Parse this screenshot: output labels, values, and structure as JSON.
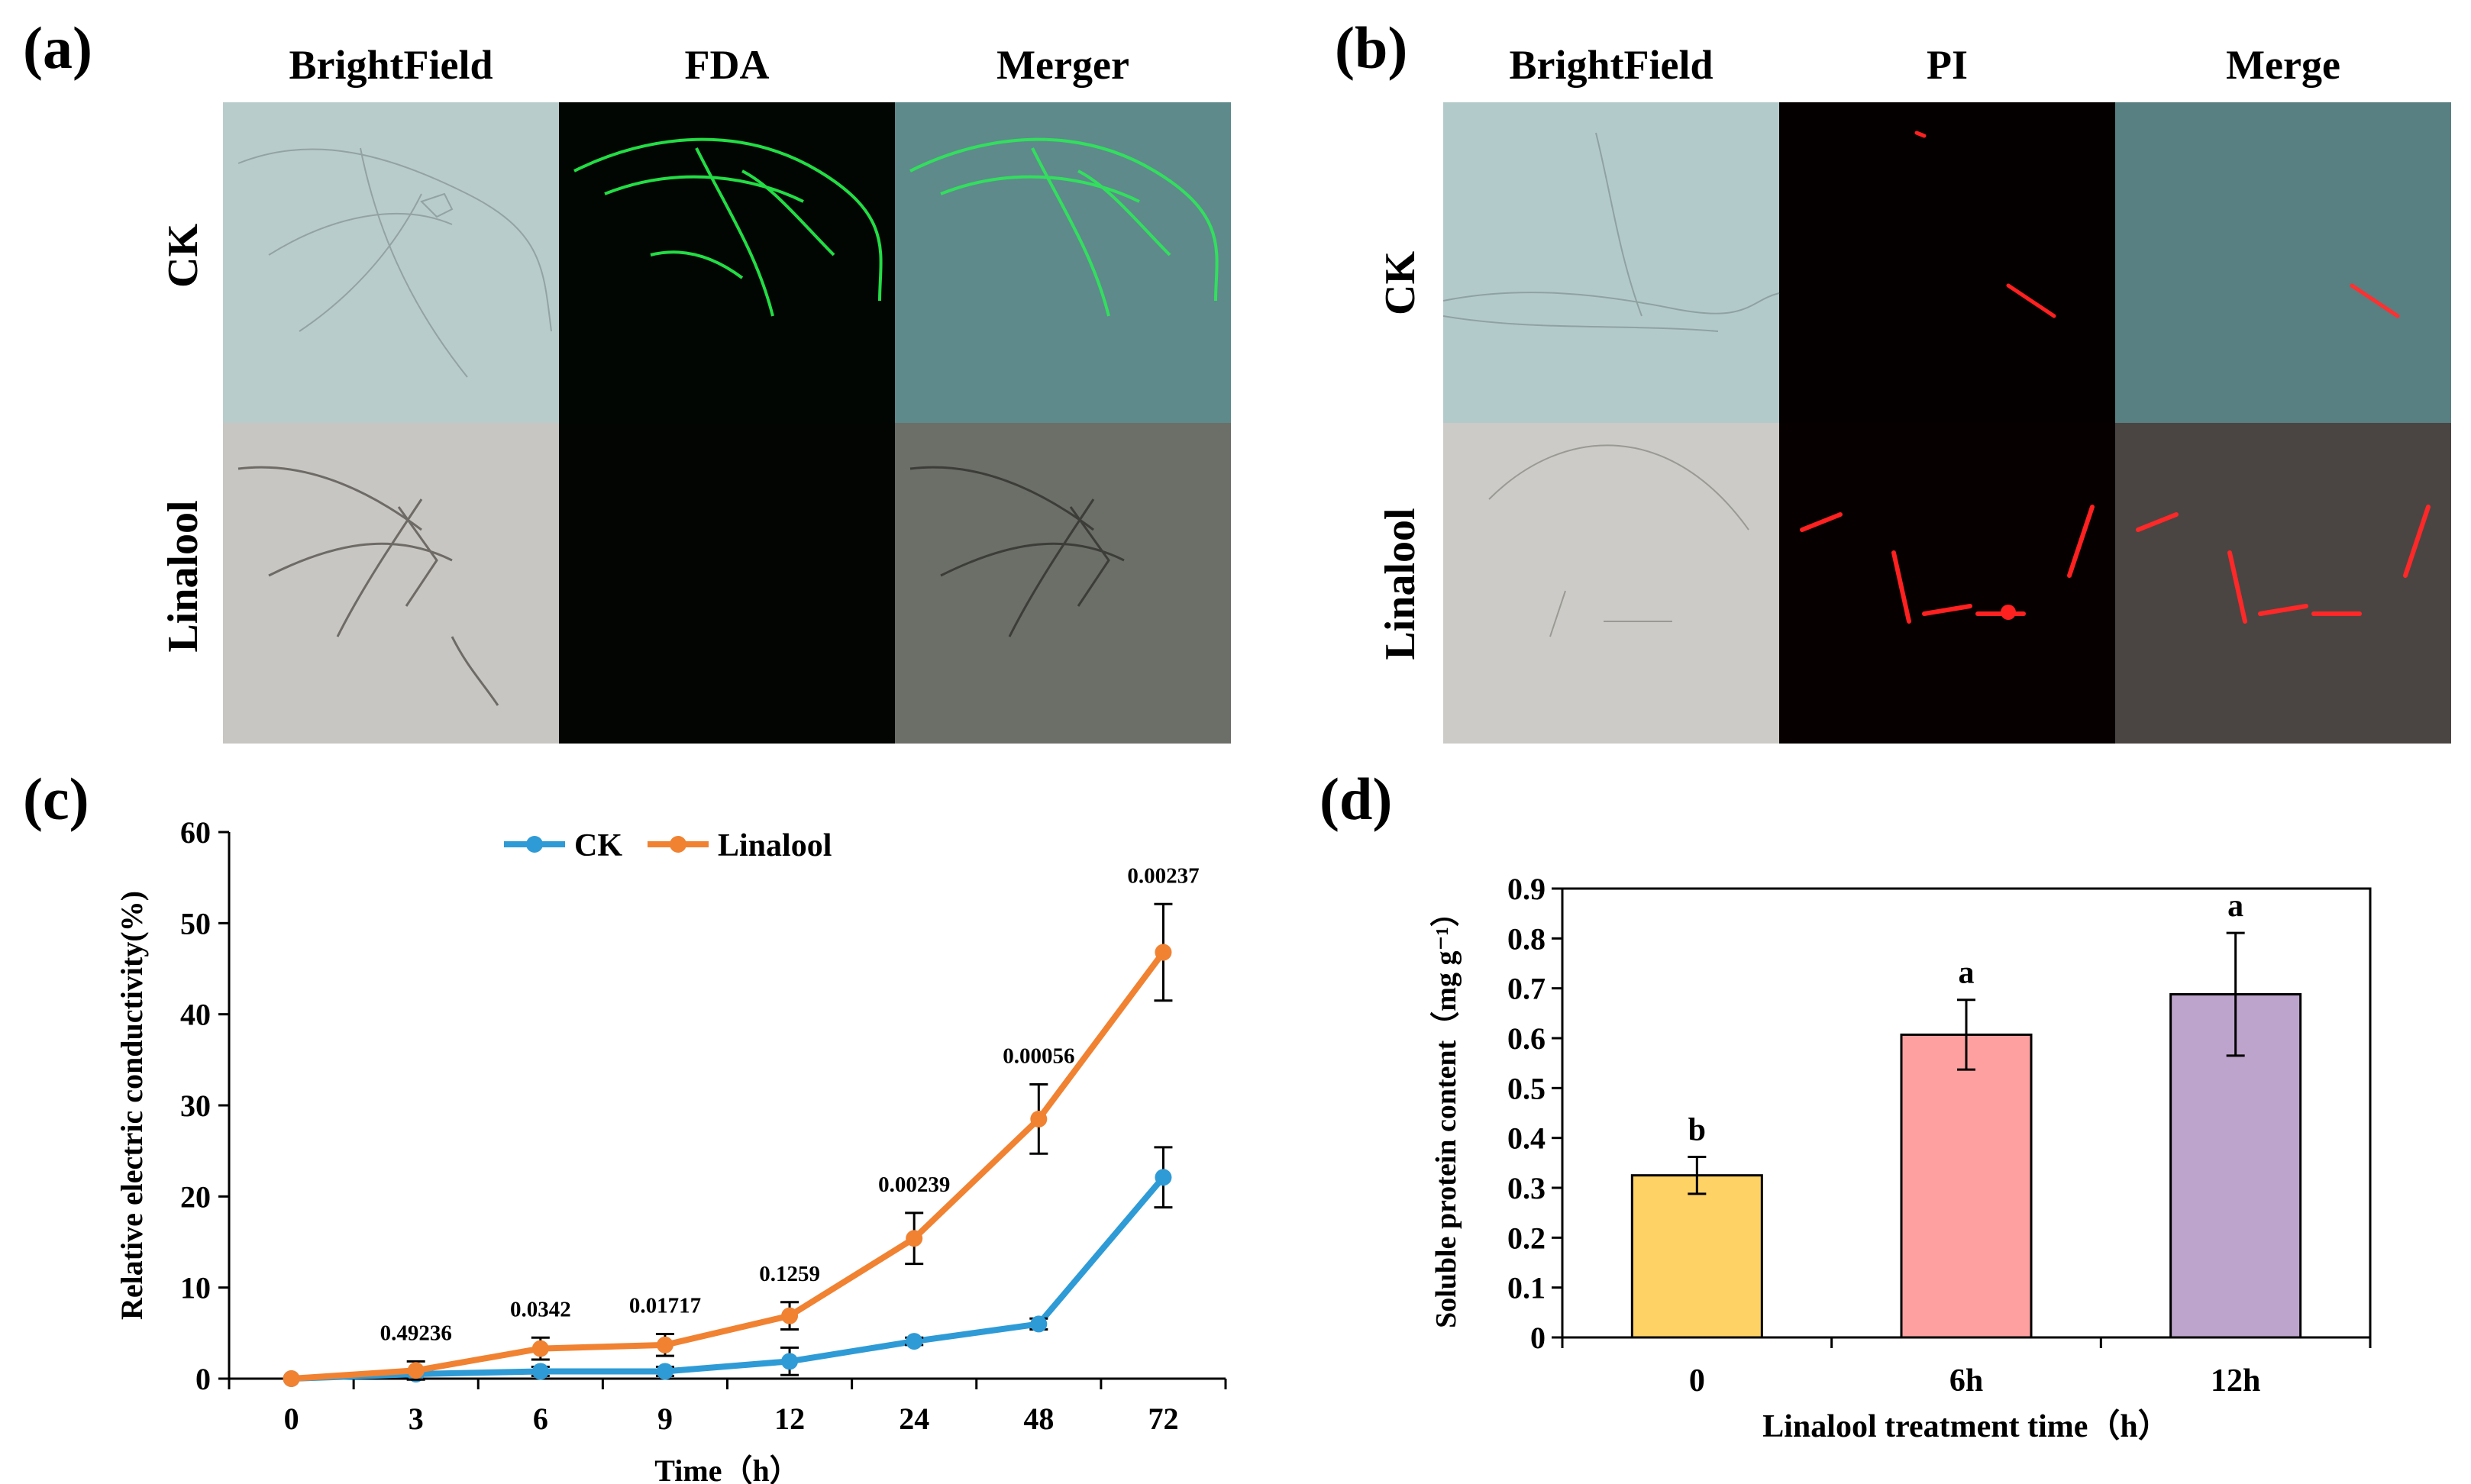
{
  "figure": {
    "panel_a": {
      "label": "(a)",
      "columns": [
        "BrightField",
        "FDA",
        "Merger"
      ],
      "rows": [
        "CK",
        "Linalool"
      ]
    },
    "panel_b": {
      "label": "(b)",
      "columns": [
        "BrightField",
        "PI",
        "Merge"
      ],
      "rows": [
        "CK",
        "Linalool"
      ]
    },
    "panel_c": {
      "label": "(c)"
    },
    "panel_d": {
      "label": "(d)"
    }
  },
  "colors": {
    "ck": "#2E9BD6",
    "linalool": "#F08232",
    "bar_0": "#FFD265",
    "bar_6h": "#FFA0A0",
    "bar_12h": "#BDA4CC",
    "fda_green": "#22DD44",
    "pi_red": "#FF2020"
  },
  "chart_data": [
    {
      "type": "line",
      "categories": [
        "0",
        "3",
        "6",
        "9",
        "12",
        "24",
        "48",
        "72"
      ],
      "series": [
        {
          "name": "CK",
          "values": [
            0,
            0.5,
            0.8,
            0.8,
            1.9,
            4.1,
            6.0,
            22.1
          ],
          "errors": [
            0,
            0.5,
            0.5,
            0.5,
            1.5,
            0.4,
            0.6,
            3.3
          ]
        },
        {
          "name": "Linalool",
          "values": [
            0,
            0.9,
            3.3,
            3.7,
            6.9,
            15.4,
            28.5,
            46.8
          ],
          "errors": [
            0,
            1.0,
            1.2,
            1.2,
            1.5,
            2.8,
            3.8,
            5.3
          ]
        }
      ],
      "pvalues": [
        "0.49236",
        "0.0342",
        "0.01717",
        "0.1259",
        "0.00239",
        "0.00056",
        "0.00237"
      ],
      "xlabel": "Time（h）",
      "ylabel": "Relative electric conductivity(%)",
      "ylim": [
        0,
        60
      ],
      "yticks": [
        "0",
        "10",
        "20",
        "30",
        "40",
        "50",
        "60"
      ],
      "legend": "top-center"
    },
    {
      "type": "bar",
      "categories": [
        "0",
        "6h",
        "12h"
      ],
      "values": [
        0.325,
        0.607,
        0.688
      ],
      "errors": [
        0.037,
        0.07,
        0.123
      ],
      "letters": [
        "b",
        "a",
        "a"
      ],
      "xlabel": "Linalool treatment time（h）",
      "ylabel": "Soluble protein content（mg g⁻¹）",
      "ylim": [
        0,
        0.9
      ],
      "yticks": [
        "0",
        "0.1",
        "0.2",
        "0.3",
        "0.4",
        "0.5",
        "0.6",
        "0.7",
        "0.8",
        "0.9"
      ]
    }
  ]
}
